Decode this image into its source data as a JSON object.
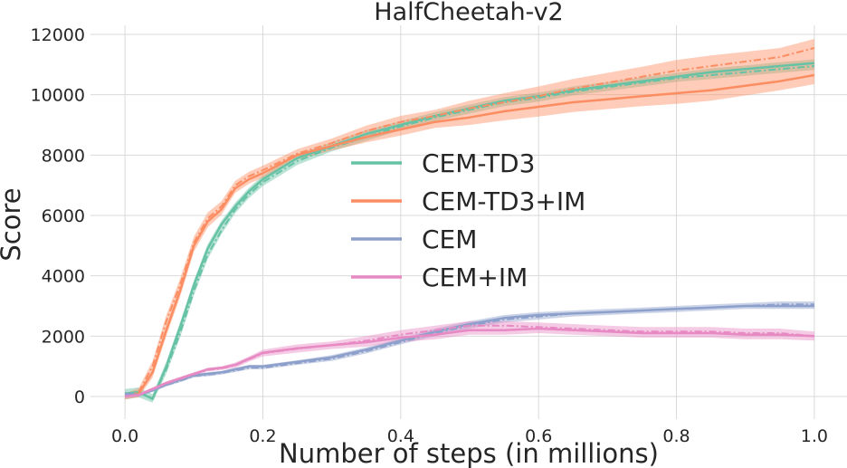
{
  "chart_data": {
    "type": "line",
    "title": "HalfCheetah-v2",
    "xlabel": "Number of steps (in millions)",
    "ylabel": "Score",
    "xlim": [
      -0.05,
      1.05
    ],
    "ylim": [
      -750,
      12300
    ],
    "xticks": [
      0.0,
      0.2,
      0.4,
      0.6,
      0.8,
      1.0
    ],
    "xtick_labels": [
      "0.0",
      "0.2",
      "0.4",
      "0.6",
      "0.8",
      "1.0"
    ],
    "yticks": [
      0,
      2000,
      4000,
      6000,
      8000,
      10000,
      12000
    ],
    "ytick_labels": [
      "0",
      "2000",
      "4000",
      "6000",
      "8000",
      "10000",
      "12000"
    ],
    "grid": true,
    "legend_position": "center",
    "x": [
      0.0,
      0.02,
      0.04,
      0.06,
      0.08,
      0.1,
      0.12,
      0.14,
      0.16,
      0.18,
      0.2,
      0.25,
      0.3,
      0.35,
      0.4,
      0.45,
      0.5,
      0.55,
      0.6,
      0.65,
      0.7,
      0.75,
      0.8,
      0.85,
      0.9,
      0.95,
      1.0
    ],
    "series": [
      {
        "name": "CEM-TD3",
        "color": "#66c2a5",
        "values": [
          100,
          150,
          -80,
          1000,
          2300,
          3700,
          4900,
          5700,
          6300,
          6800,
          7200,
          7900,
          8300,
          8700,
          9000,
          9300,
          9550,
          9800,
          9950,
          10150,
          10300,
          10450,
          10600,
          10750,
          10850,
          10950,
          11050
        ],
        "values_alt": [
          50,
          120,
          -50,
          900,
          2100,
          3500,
          4700,
          5500,
          6200,
          6700,
          7100,
          7800,
          8250,
          8600,
          8950,
          9250,
          9500,
          9750,
          9900,
          10100,
          10250,
          10400,
          10550,
          10650,
          10750,
          10850,
          10950
        ],
        "band": [
          300,
          300,
          250,
          300,
          300,
          300,
          300,
          250,
          250,
          250,
          250,
          250,
          250,
          250,
          250,
          250,
          250,
          250,
          250,
          250,
          250,
          250,
          250,
          250,
          250,
          250,
          250
        ]
      },
      {
        "name": "CEM-TD3+IM",
        "color": "#fc8d62",
        "values": [
          0,
          100,
          800,
          2200,
          3500,
          5000,
          5800,
          6200,
          6900,
          7200,
          7400,
          8000,
          8300,
          8600,
          8850,
          9100,
          9250,
          9450,
          9600,
          9750,
          9850,
          9950,
          10050,
          10150,
          10300,
          10450,
          10650
        ],
        "values_alt": [
          0,
          150,
          1000,
          2500,
          3700,
          5100,
          5900,
          6300,
          7000,
          7300,
          7500,
          8050,
          8400,
          8800,
          9100,
          9300,
          9550,
          9750,
          9950,
          10200,
          10400,
          10600,
          10800,
          10950,
          11100,
          11250,
          11550
        ],
        "band": [
          200,
          250,
          350,
          400,
          400,
          400,
          400,
          350,
          300,
          300,
          300,
          300,
          300,
          350,
          400,
          400,
          500,
          600,
          650,
          650,
          650,
          650,
          700,
          700,
          650,
          600,
          600
        ]
      },
      {
        "name": "CEM",
        "color": "#8da0cb",
        "values": [
          100,
          50,
          200,
          400,
          550,
          700,
          750,
          800,
          900,
          1000,
          1000,
          1150,
          1300,
          1550,
          1850,
          2150,
          2400,
          2600,
          2700,
          2750,
          2800,
          2850,
          2900,
          2950,
          3000,
          3000,
          3000
        ],
        "values_alt": [
          50,
          50,
          200,
          380,
          520,
          680,
          720,
          780,
          860,
          950,
          950,
          1100,
          1250,
          1500,
          1800,
          2100,
          2350,
          2550,
          2650,
          2750,
          2800,
          2850,
          2900,
          2950,
          3000,
          3050,
          3050
        ],
        "band": [
          100,
          100,
          100,
          100,
          100,
          100,
          100,
          100,
          100,
          100,
          100,
          100,
          150,
          150,
          150,
          200,
          200,
          200,
          200,
          200,
          200,
          200,
          200,
          200,
          200,
          200,
          200
        ]
      },
      {
        "name": "CEM+IM",
        "color": "#e78ac3",
        "values": [
          0,
          50,
          250,
          450,
          600,
          750,
          900,
          950,
          1050,
          1250,
          1450,
          1600,
          1700,
          1800,
          1950,
          2050,
          2200,
          2200,
          2250,
          2200,
          2150,
          2100,
          2100,
          2100,
          2050,
          2050,
          2000
        ],
        "values_alt": [
          0,
          50,
          230,
          430,
          580,
          730,
          880,
          930,
          1030,
          1230,
          1430,
          1580,
          1700,
          1850,
          2050,
          2200,
          2350,
          2350,
          2300,
          2250,
          2200,
          2150,
          2150,
          2150,
          2100,
          2100,
          2000
        ],
        "band": [
          100,
          100,
          100,
          100,
          100,
          100,
          100,
          100,
          150,
          150,
          200,
          250,
          250,
          300,
          300,
          300,
          300,
          300,
          300,
          300,
          300,
          300,
          300,
          300,
          300,
          300,
          300
        ]
      }
    ]
  }
}
